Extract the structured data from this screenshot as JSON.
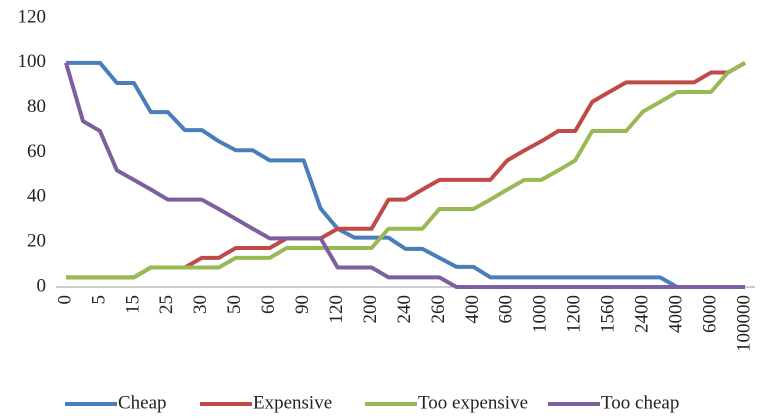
{
  "chart_data": {
    "type": "line",
    "categories": [
      "0",
      null,
      "5",
      null,
      "15",
      null,
      "25",
      null,
      "30",
      null,
      "50",
      null,
      "60",
      null,
      "90",
      null,
      "120",
      null,
      "200",
      null,
      "240",
      null,
      "260",
      null,
      "400",
      null,
      "600",
      null,
      "1000",
      null,
      "1200",
      null,
      "1560",
      null,
      "2400",
      null,
      "4000",
      null,
      "6000",
      null,
      "100000"
    ],
    "series": [
      {
        "name": "Cheap",
        "color": "#4a7ebb",
        "values": [
          100,
          100,
          100,
          91,
          91,
          78,
          78,
          70,
          70,
          65,
          61,
          61,
          56.5,
          56.5,
          56.5,
          35,
          26,
          22,
          22,
          22,
          17,
          17,
          13,
          9,
          9,
          4.3,
          4.3,
          4.3,
          4.3,
          4.3,
          4.3,
          4.3,
          4.3,
          4.3,
          4.3,
          4.3,
          0,
          0,
          0,
          0,
          0
        ]
      },
      {
        "name": "Expensive",
        "color": "#be4b48",
        "values": [
          4.3,
          4.3,
          4.3,
          4.3,
          4.3,
          8.7,
          8.7,
          8.7,
          13,
          13,
          17.4,
          17.4,
          17.4,
          21.7,
          21.7,
          21.7,
          26,
          26,
          26,
          39,
          39,
          43.5,
          47.8,
          47.8,
          47.8,
          47.8,
          56.5,
          60.9,
          65,
          69.6,
          69.6,
          82.6,
          87,
          91.3,
          91.3,
          91.3,
          91.3,
          91.3,
          95.7,
          95.7,
          100
        ]
      },
      {
        "name": "Too expensive",
        "color": "#98b954",
        "values": [
          4.3,
          4.3,
          4.3,
          4.3,
          4.3,
          8.7,
          8.7,
          8.7,
          8.7,
          8.7,
          13,
          13,
          13,
          17.4,
          17.4,
          17.4,
          17.4,
          17.4,
          17.4,
          26,
          26,
          26,
          34.8,
          34.8,
          34.8,
          39,
          43.5,
          47.8,
          47.8,
          52,
          56.5,
          69.6,
          69.6,
          69.6,
          78.3,
          82.6,
          87,
          87,
          87,
          95.7,
          100
        ]
      },
      {
        "name": "Too cheap",
        "color": "#7d5fa0",
        "values": [
          100,
          74,
          69.6,
          52,
          47.8,
          43.5,
          39,
          39,
          39,
          34.8,
          30.4,
          26,
          21.7,
          21.7,
          21.7,
          21.7,
          8.7,
          8.7,
          8.7,
          4.3,
          4.3,
          4.3,
          4.3,
          0,
          0,
          0,
          0,
          0,
          0,
          0,
          0,
          0,
          0,
          0,
          0,
          0,
          0,
          0,
          0,
          0,
          0
        ]
      }
    ],
    "ylim": [
      0,
      120
    ],
    "yticks": [
      0,
      20,
      40,
      60,
      80,
      100,
      120
    ]
  }
}
